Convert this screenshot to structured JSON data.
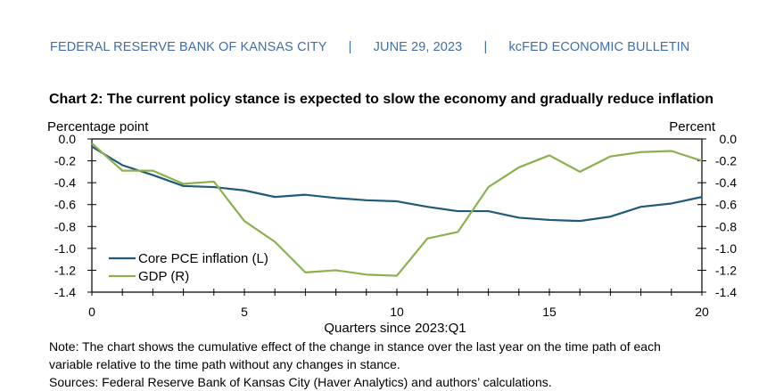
{
  "header": {
    "org": "FEDERAL RESERVE BANK OF KANSAS CITY",
    "separator": "|",
    "date": "JUNE 29, 2023",
    "publication": "kcFED ECONOMIC BULLETIN"
  },
  "chart_data": {
    "type": "line",
    "title": "Chart 2: The current policy stance is expected to slow the economy and gradually reduce inflation",
    "left_axis_label": "Percentage point",
    "right_axis_label": "Percent",
    "xlabel": "Quarters since 2023:Q1",
    "xlim": [
      0,
      20
    ],
    "x_ticks": [
      "0",
      "5",
      "10",
      "15",
      "20"
    ],
    "ylim": [
      -1.4,
      0.0
    ],
    "y_ticks_left": [
      "0.0",
      "-0.2",
      "-0.4",
      "-0.6",
      "-0.8",
      "-1.0",
      "-1.2",
      "-1.4"
    ],
    "y_ticks_right": [
      "0.0",
      "-0.2",
      "-0.4",
      "-0.6",
      "-0.8",
      "-1.0",
      "-1.2",
      "-1.4"
    ],
    "x": [
      0,
      1,
      2,
      3,
      4,
      5,
      6,
      7,
      8,
      9,
      10,
      11,
      12,
      13,
      14,
      15,
      16,
      17,
      18,
      19,
      20
    ],
    "series": [
      {
        "name": "Core PCE inflation (L)",
        "axis": "left",
        "color": "#1f5a7a",
        "values": [
          -0.07,
          -0.24,
          -0.33,
          -0.43,
          -0.44,
          -0.47,
          -0.53,
          -0.51,
          -0.54,
          -0.56,
          -0.57,
          -0.62,
          -0.66,
          -0.66,
          -0.72,
          -0.74,
          -0.75,
          -0.71,
          -0.62,
          -0.59,
          -0.53
        ]
      },
      {
        "name": "GDP (R)",
        "axis": "right",
        "color": "#8cb04e",
        "values": [
          -0.04,
          -0.29,
          -0.29,
          -0.41,
          -0.39,
          -0.75,
          -0.94,
          -1.22,
          -1.2,
          -1.24,
          -1.25,
          -0.91,
          -0.85,
          -0.44,
          -0.26,
          -0.15,
          -0.3,
          -0.16,
          -0.12,
          -0.11,
          -0.2
        ]
      }
    ],
    "legend_position": "bottom-left",
    "grid": false
  },
  "notes": {
    "note_line1": "Note: The chart shows the cumulative effect of the change in stance over the last year on the time path of each",
    "note_line2": "variable relative to the time path without any changes in stance.",
    "sources": "Sources: Federal Reserve Bank of Kansas City (Haver Analytics) and authors’ calculations."
  }
}
